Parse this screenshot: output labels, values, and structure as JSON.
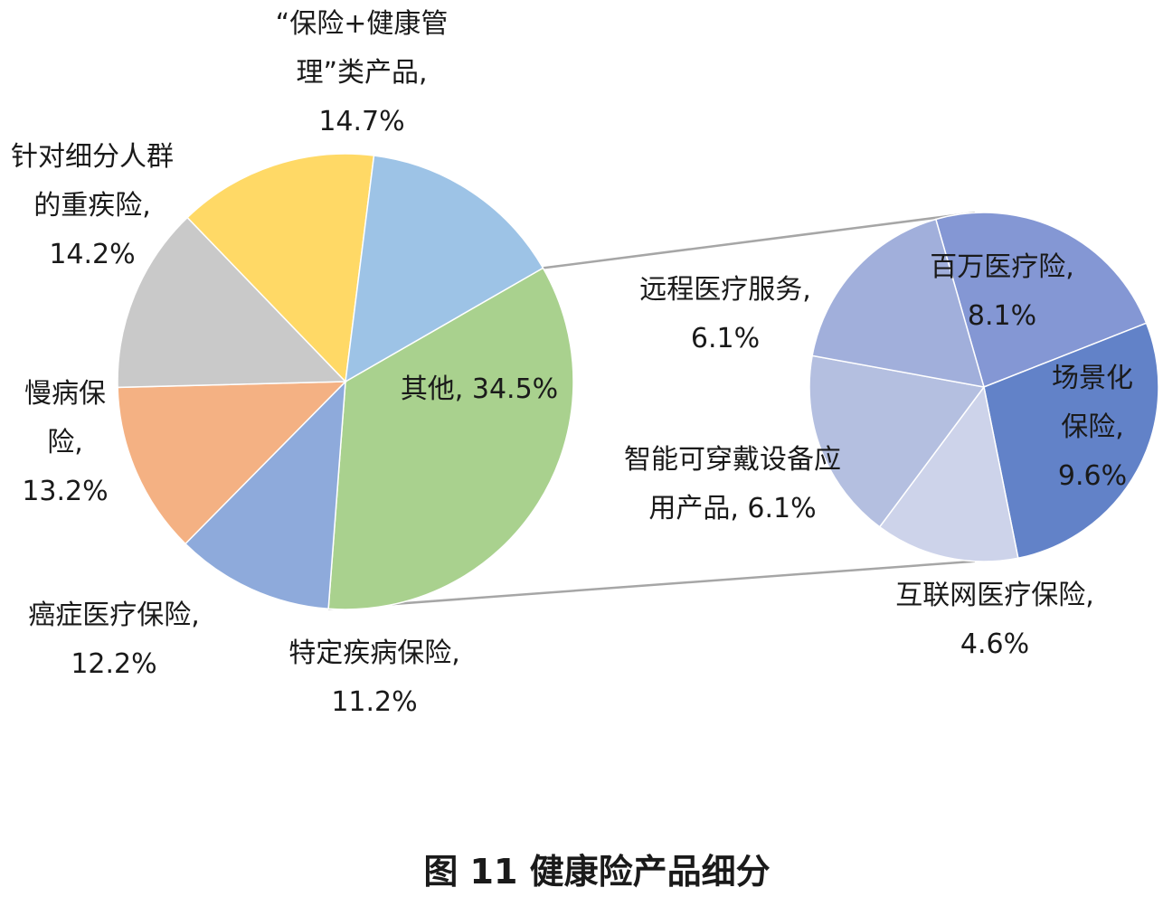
{
  "caption": "图 11  健康险产品细分",
  "chart_data": [
    {
      "type": "pie",
      "name": "main",
      "slices": [
        {
          "label": "其他",
          "value": 34.5,
          "display": "其他, 34.5%",
          "color": "#a9d18e"
        },
        {
          "label": "特定疾病保险",
          "value": 11.2,
          "display": "特定疾病保险,\n11.2%",
          "color": "#8eaadb"
        },
        {
          "label": "癌症医疗保险",
          "value": 12.2,
          "display": "癌症医疗保险,\n12.2%",
          "color": "#f4b183"
        },
        {
          "label": "慢病保险",
          "value": 13.2,
          "display": "慢病保\n险,\n13.2%",
          "color": "#c9c9c9"
        },
        {
          "label": "针对细分人群的重疾险",
          "value": 14.2,
          "display": "针对细分人群\n的重疾险,\n14.2%",
          "color": "#ffd966"
        },
        {
          "label": "“保险+健康管理”类产品",
          "value": 14.7,
          "display": "“保险+健康管\n理”类产品,\n14.7%",
          "color": "#9dc3e6"
        }
      ]
    },
    {
      "type": "pie",
      "name": "detail",
      "slices": [
        {
          "label": "百万医疗险",
          "value": 8.1,
          "display": "百万医疗险,\n8.1%",
          "color": "#8497d4"
        },
        {
          "label": "场景化保险",
          "value": 9.6,
          "display": "场景化\n保险,\n9.6%",
          "color": "#6282c8"
        },
        {
          "label": "互联网医疗保险",
          "value": 4.6,
          "display": "互联网医疗保险,\n4.6%",
          "color": "#cdd3ea"
        },
        {
          "label": "智能可穿戴设备应用产品",
          "value": 6.1,
          "display": "智能可穿戴设备应\n用产品, 6.1%",
          "color": "#b4bfe0"
        },
        {
          "label": "远程医疗服务",
          "value": 6.1,
          "display": "远程医疗服务,\n6.1%",
          "color": "#a1afdb"
        }
      ]
    }
  ]
}
